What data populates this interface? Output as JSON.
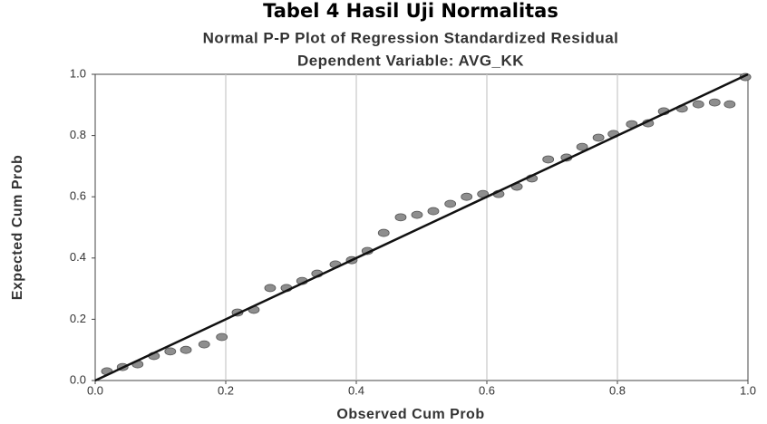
{
  "chart_data": {
    "type": "scatter",
    "title": "Tabel 4 Hasil Uji Normalitas",
    "subtitle": "Normal P-P Plot of Regression Standardized Residual",
    "subtitle2": "Dependent Variable: AVG_KK",
    "x_label": "Observed Cum Prob",
    "y_label": "Expected Cum Prob",
    "x": [
      0.018,
      0.042,
      0.065,
      0.09,
      0.115,
      0.139,
      0.167,
      0.194,
      0.218,
      0.243,
      0.268,
      0.293,
      0.317,
      0.34,
      0.368,
      0.393,
      0.417,
      0.442,
      0.468,
      0.493,
      0.518,
      0.544,
      0.569,
      0.594,
      0.618,
      0.646,
      0.669,
      0.694,
      0.722,
      0.746,
      0.771,
      0.794,
      0.822,
      0.847,
      0.871,
      0.899,
      0.924,
      0.949,
      0.972,
      0.996
    ],
    "values": [
      0.03,
      0.044,
      0.053,
      0.08,
      0.095,
      0.1,
      0.118,
      0.142,
      0.222,
      0.231,
      0.302,
      0.302,
      0.325,
      0.349,
      0.379,
      0.393,
      0.423,
      0.482,
      0.533,
      0.541,
      0.553,
      0.577,
      0.6,
      0.609,
      0.609,
      0.633,
      0.66,
      0.722,
      0.728,
      0.763,
      0.793,
      0.805,
      0.837,
      0.84,
      0.879,
      0.888,
      0.902,
      0.908,
      0.902,
      0.991
    ],
    "color": "#8e8e8e",
    "xlim": [
      0,
      1
    ],
    "ylim": [
      0,
      1
    ],
    "xticks": [
      {
        "value": 0,
        "label": "0.0"
      },
      0.2,
      0.4,
      0.6,
      0.8,
      {
        "value": 1,
        "label": "1.0"
      }
    ],
    "yticks": [
      {
        "value": 0,
        "label": "0.0"
      },
      0.2,
      0.4,
      0.6,
      0.8,
      {
        "value": 1,
        "label": "1.0"
      }
    ],
    "grid": "x"
  }
}
